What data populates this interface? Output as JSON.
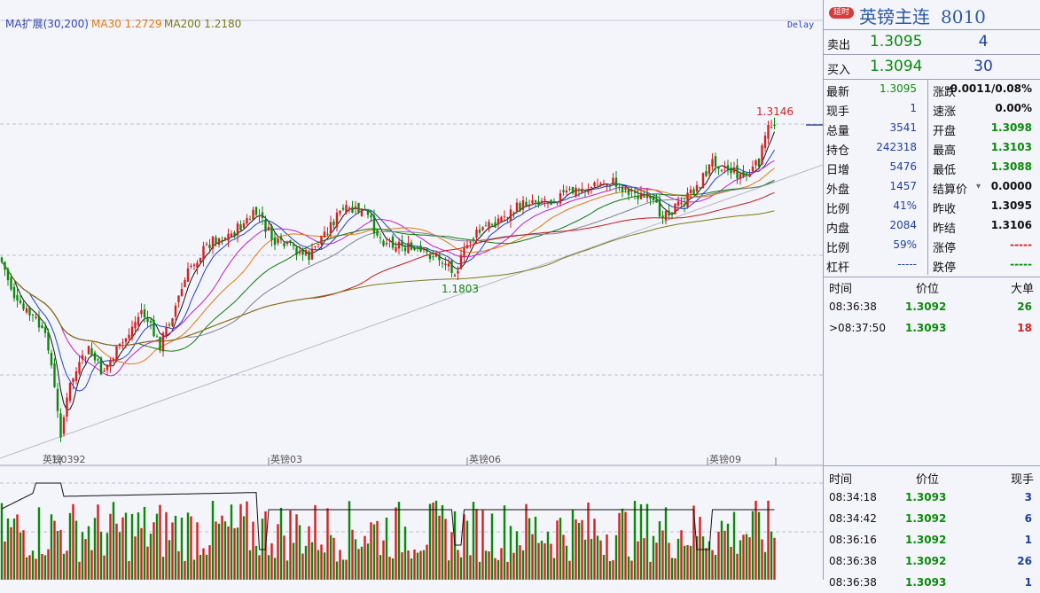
{
  "chart_header": {
    "ma_label": "MA扩展(30,200)",
    "ma30_label": "MA30 1.2729",
    "ma200_label": "MA200 1.2180",
    "delay_label": "Delay",
    "high_label": "1.3146",
    "mid_low_label": "1.1803",
    "low_label": "1.0392",
    "x_labels": [
      "英镑",
      "英镑03",
      "英镑06",
      "英镑09"
    ]
  },
  "colors": {
    "up": "#d42020",
    "down": "#0a8a0a",
    "ma30": "#e07a10",
    "ma200": "#7a7a18",
    "bg": "#f4f4fb"
  },
  "header": {
    "badge": "延时",
    "title": "英镑主连",
    "code": "8010"
  },
  "quote": {
    "sell_label": "卖出",
    "sell_price": "1.3095",
    "sell_vol": "4",
    "buy_label": "买入",
    "buy_price": "1.3094",
    "buy_vol": "30"
  },
  "stats": [
    {
      "l1": "最新",
      "v1": "1.3095",
      "c1": "g",
      "l2": "涨跌",
      "v2": "-0.0011/0.08%",
      "c2": "k"
    },
    {
      "l1": "现手",
      "v1": "1",
      "c1": "b",
      "l2": "速涨",
      "v2": "0.00%",
      "c2": "k"
    },
    {
      "l1": "总量",
      "v1": "3541",
      "c1": "b",
      "l2": "开盘",
      "v2": "1.3098",
      "c2": "g"
    },
    {
      "l1": "持仓",
      "v1": "242318",
      "c1": "b",
      "l2": "最高",
      "v2": "1.3103",
      "c2": "g"
    },
    {
      "l1": "日增",
      "v1": "5476",
      "c1": "b",
      "l2": "最低",
      "v2": "1.3088",
      "c2": "g"
    },
    {
      "l1": "外盘",
      "v1": "1457",
      "c1": "b",
      "l2": "结算价",
      "v2": "0.0000",
      "c2": "k"
    },
    {
      "l1": "比例",
      "v1": "41%",
      "c1": "b",
      "l2": "昨收",
      "v2": "1.3095",
      "c2": "k"
    },
    {
      "l1": "内盘",
      "v1": "2084",
      "c1": "b",
      "l2": "昨结",
      "v2": "1.3106",
      "c2": "k"
    },
    {
      "l1": "比例",
      "v1": "59%",
      "c1": "b",
      "l2": "涨停",
      "v2": "-----",
      "c2": "r"
    },
    {
      "l1": "杠杆",
      "v1": "-----",
      "c1": "b",
      "l2": "跌停",
      "v2": "-----",
      "c2": "g"
    }
  ],
  "big_trades": {
    "headers": [
      "时间",
      "价位",
      "大单"
    ],
    "rows": [
      {
        "time": "08:36:38",
        "price": "1.3092",
        "vol": "26",
        "c": "g"
      },
      {
        "time": ">08:37:50",
        "price": "1.3093",
        "vol": "18",
        "c": "r"
      }
    ]
  },
  "ticks": {
    "headers": [
      "时间",
      "价位",
      "现手"
    ],
    "rows": [
      {
        "time": "08:34:18",
        "price": "1.3093",
        "vol": "3"
      },
      {
        "time": "08:34:42",
        "price": "1.3092",
        "vol": "6"
      },
      {
        "time": "08:36:16",
        "price": "1.3092",
        "vol": "1"
      },
      {
        "time": "08:36:38",
        "price": "1.3092",
        "vol": "26"
      },
      {
        "time": "08:36:38",
        "price": "1.3093",
        "vol": "1"
      }
    ]
  }
}
